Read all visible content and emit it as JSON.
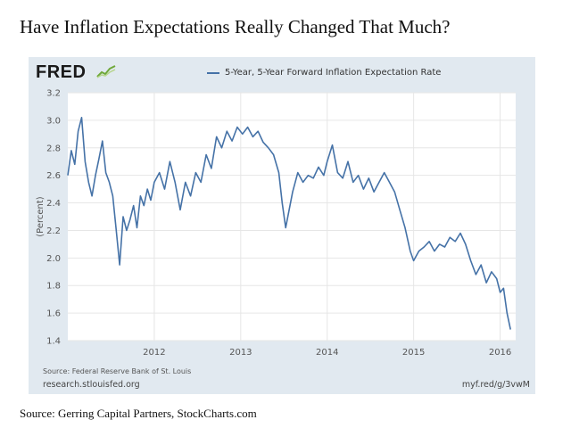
{
  "headline": "Have Inflation Expectations Really Changed That Much?",
  "footer_source": "Source: Gerring Capital Partners, StockCharts.com",
  "panel": {
    "logo_text": "FRED",
    "source": "Source: Federal Reserve Bank of St. Louis",
    "site": "research.stlouisfed.org",
    "shortlink": "myf.red/g/3vwM"
  },
  "colors": {
    "series": "#4572a7",
    "panel_bg": "#e1e9f0",
    "plot_bg": "#ffffff",
    "grid": "#e6e6e6",
    "logo_mark": "#6fa83a"
  },
  "chart_data": {
    "type": "line",
    "title": "",
    "xlabel": "",
    "ylabel": "(Percent)",
    "ylim": [
      1.4,
      3.2
    ],
    "xlim": [
      2011.0,
      2016.18
    ],
    "yticks": [
      "1.4",
      "1.6",
      "1.8",
      "2.0",
      "2.2",
      "2.4",
      "2.6",
      "2.8",
      "3.0",
      "3.2"
    ],
    "xticks": [
      {
        "label": "2012",
        "value": 2012
      },
      {
        "label": "2013",
        "value": 2013
      },
      {
        "label": "2014",
        "value": 2014
      },
      {
        "label": "2015",
        "value": 2015
      },
      {
        "label": "2016",
        "value": 2016
      }
    ],
    "grid": true,
    "legend": "top-center",
    "series": [
      {
        "name": "5-Year, 5-Year Forward Inflation Expectation Rate",
        "x": [
          2011.0,
          2011.04,
          2011.08,
          2011.12,
          2011.16,
          2011.2,
          2011.24,
          2011.28,
          2011.32,
          2011.36,
          2011.4,
          2011.44,
          2011.48,
          2011.52,
          2011.56,
          2011.6,
          2011.64,
          2011.68,
          2011.72,
          2011.76,
          2011.8,
          2011.84,
          2011.88,
          2011.92,
          2011.96,
          2012.0,
          2012.06,
          2012.12,
          2012.18,
          2012.24,
          2012.3,
          2012.36,
          2012.42,
          2012.48,
          2012.54,
          2012.6,
          2012.66,
          2012.72,
          2012.78,
          2012.84,
          2012.9,
          2012.96,
          2013.02,
          2013.08,
          2013.14,
          2013.2,
          2013.26,
          2013.32,
          2013.38,
          2013.44,
          2013.48,
          2013.52,
          2013.56,
          2013.6,
          2013.66,
          2013.72,
          2013.78,
          2013.84,
          2013.9,
          2013.96,
          2014.0,
          2014.06,
          2014.12,
          2014.18,
          2014.24,
          2014.3,
          2014.36,
          2014.42,
          2014.48,
          2014.54,
          2014.6,
          2014.66,
          2014.72,
          2014.78,
          2014.84,
          2014.9,
          2014.96,
          2015.0,
          2015.06,
          2015.12,
          2015.18,
          2015.24,
          2015.3,
          2015.36,
          2015.42,
          2015.48,
          2015.54,
          2015.6,
          2015.66,
          2015.72,
          2015.78,
          2015.84,
          2015.9,
          2015.96,
          2016.0,
          2016.04,
          2016.08,
          2016.12
        ],
        "values": [
          2.6,
          2.78,
          2.68,
          2.92,
          3.02,
          2.7,
          2.55,
          2.45,
          2.6,
          2.72,
          2.85,
          2.62,
          2.55,
          2.45,
          2.2,
          1.95,
          2.3,
          2.2,
          2.28,
          2.38,
          2.22,
          2.45,
          2.38,
          2.5,
          2.42,
          2.55,
          2.62,
          2.5,
          2.7,
          2.55,
          2.35,
          2.55,
          2.45,
          2.62,
          2.55,
          2.75,
          2.65,
          2.88,
          2.8,
          2.92,
          2.85,
          2.95,
          2.9,
          2.95,
          2.88,
          2.92,
          2.84,
          2.8,
          2.75,
          2.62,
          2.4,
          2.22,
          2.35,
          2.48,
          2.62,
          2.55,
          2.6,
          2.58,
          2.66,
          2.6,
          2.7,
          2.82,
          2.62,
          2.58,
          2.7,
          2.55,
          2.6,
          2.5,
          2.58,
          2.48,
          2.55,
          2.62,
          2.55,
          2.48,
          2.35,
          2.22,
          2.05,
          1.98,
          2.05,
          2.08,
          2.12,
          2.05,
          2.1,
          2.08,
          2.15,
          2.12,
          2.18,
          2.1,
          1.98,
          1.88,
          1.95,
          1.82,
          1.9,
          1.85,
          1.75,
          1.78,
          1.6,
          1.48
        ]
      }
    ]
  }
}
